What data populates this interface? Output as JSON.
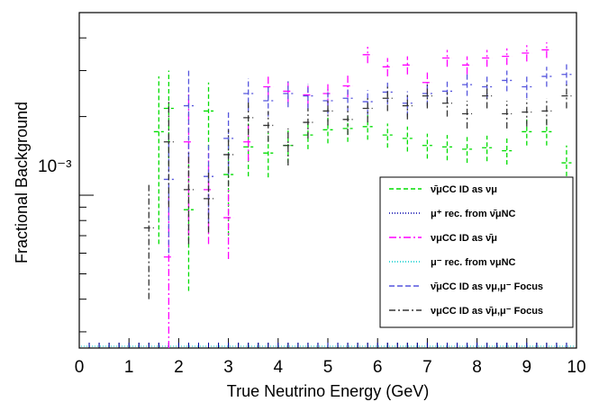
{
  "chart_data": {
    "type": "scatter",
    "title": "",
    "xlabel": "True Neutrino Energy (GeV)",
    "ylabel": "Fractional Background",
    "xlim": [
      0,
      10
    ],
    "ylim": [
      0.00026,
      0.005
    ],
    "y_scale": "log",
    "y_tick_label": "10⁻³",
    "x_tick_labels": [
      "0",
      "1",
      "2",
      "3",
      "4",
      "5",
      "6",
      "7",
      "8",
      "9",
      "10"
    ],
    "grid": false,
    "legend_position": "bottom-right",
    "series": [
      {
        "name": "ν̄μCC ID as νμ",
        "color": "#00dd00",
        "dash": "5,3",
        "x": [
          1.6,
          1.8,
          2.2,
          2.6,
          3.0,
          3.4,
          3.8,
          4.2,
          4.6,
          5.0,
          5.4,
          5.8,
          6.2,
          6.6,
          7.0,
          7.4,
          7.8,
          8.2,
          8.6,
          9.0,
          9.4,
          9.8
        ],
        "y": [
          0.00175,
          0.00215,
          0.00088,
          0.0021,
          0.0012,
          0.00153,
          0.00145,
          0.00155,
          0.0017,
          0.00178,
          0.0018,
          0.00183,
          0.0017,
          0.00165,
          0.00155,
          0.00153,
          0.0015,
          0.00152,
          0.00148,
          0.00175,
          0.00175,
          0.00133
        ],
        "err": [
          0.0011,
          0.00085,
          0.00045,
          0.0006,
          0.0005,
          0.00035,
          0.00028,
          0.00022,
          0.0002,
          0.0002,
          0.0002,
          0.0002,
          0.00018,
          0.00018,
          0.00017,
          0.00017,
          0.00017,
          0.00017,
          0.00017,
          0.0002,
          0.0002,
          0.00022
        ]
      },
      {
        "name": "μ⁺ rec. from ν̄μNC",
        "color": "#0000aa",
        "dash": "1,2",
        "x": [],
        "y": [],
        "err": []
      },
      {
        "name": "νμCC ID as ν̄μ",
        "color": "#ff00ff",
        "dash": "8,3,2,3",
        "x": [
          1.8,
          2.2,
          2.6,
          3.0,
          3.4,
          3.8,
          4.2,
          4.6,
          5.0,
          5.4,
          5.8,
          6.2,
          6.6,
          7.0,
          7.4,
          7.8,
          8.2,
          8.6,
          9.0,
          9.4
        ],
        "y": [
          0.00058,
          0.0016,
          0.00105,
          0.00082,
          0.0016,
          0.0026,
          0.0025,
          0.00242,
          0.00245,
          0.00262,
          0.00345,
          0.0031,
          0.00315,
          0.0027,
          0.00335,
          0.00315,
          0.00335,
          0.0034,
          0.0035,
          0.0036
        ],
        "err": [
          0.0004,
          0.0009,
          0.0004,
          0.00025,
          0.00025,
          0.00025,
          0.00025,
          0.00025,
          0.00025,
          0.00025,
          0.00025,
          0.00025,
          0.00025,
          0.00025,
          0.00025,
          0.00025,
          0.00025,
          0.00025,
          0.00025,
          0.00025
        ]
      },
      {
        "name": "μ⁻ rec. from νμNC",
        "color": "#00cccc",
        "dash": "1,2",
        "x": [],
        "y": [],
        "err": []
      },
      {
        "name": "ν̄μCC ID as νμ,μ⁻ Focus",
        "color": "#5555dd",
        "dash": "6,3",
        "x": [
          1.8,
          2.2,
          2.6,
          3.0,
          3.4,
          3.8,
          4.2,
          4.6,
          5.0,
          5.4,
          5.8,
          6.2,
          6.6,
          7.0,
          7.4,
          7.8,
          8.2,
          8.6,
          9.0,
          9.4,
          9.8
        ],
        "y": [
          0.00115,
          0.0022,
          0.00118,
          0.00165,
          0.00245,
          0.0023,
          0.00245,
          0.0024,
          0.0023,
          0.00235,
          0.00228,
          0.00248,
          0.00225,
          0.00245,
          0.0025,
          0.00265,
          0.0026,
          0.00275,
          0.0026,
          0.00285,
          0.0029
        ],
        "err": [
          0.00055,
          0.0008,
          0.0004,
          0.00045,
          0.00035,
          0.0003,
          0.00028,
          0.00026,
          0.00025,
          0.00025,
          0.00025,
          0.00025,
          0.00025,
          0.00025,
          0.00025,
          0.00025,
          0.00025,
          0.00025,
          0.00025,
          0.00025,
          0.00028
        ]
      },
      {
        "name": "νμCC ID as ν̄μ,μ⁻ Focus",
        "color": "#333333",
        "dash": "7,3,2,3",
        "x": [
          1.4,
          1.8,
          2.2,
          2.6,
          3.0,
          3.4,
          3.8,
          4.2,
          4.6,
          5.0,
          5.4,
          5.8,
          6.2,
          6.6,
          7.0,
          7.4,
          7.8,
          8.2,
          8.6,
          9.0,
          9.4,
          9.8
        ],
        "y": [
          0.00075,
          0.0016,
          0.00105,
          0.00097,
          0.00143,
          0.00198,
          0.00185,
          0.00155,
          0.0019,
          0.0021,
          0.00195,
          0.00215,
          0.00235,
          0.0022,
          0.0024,
          0.00225,
          0.00205,
          0.0024,
          0.00205,
          0.00208,
          0.0021,
          0.0024
        ],
        "err": [
          0.00035,
          0.0007,
          0.0004,
          0.00025,
          0.00035,
          0.00028,
          0.00025,
          0.00025,
          0.00025,
          0.00025,
          0.00025,
          0.00025,
          0.00025,
          0.00025,
          0.00025,
          0.00025,
          0.00025,
          0.00025,
          0.00025,
          0.00025,
          0.00025,
          0.00025
        ]
      }
    ]
  }
}
